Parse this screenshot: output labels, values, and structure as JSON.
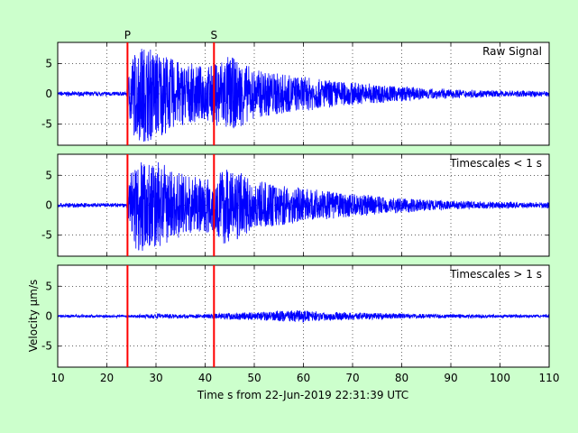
{
  "figure": {
    "background": "#ccffcc",
    "plot_background": "#ffffff",
    "signal_color": "#0000ff",
    "marker_color": "#ff0000"
  },
  "chart_data": {
    "type": "line",
    "xlabel": "Time s from 22-Jun-2019 22:31:39 UTC",
    "ylabel": "Velocity μm/s",
    "xlim": [
      10,
      110
    ],
    "x_ticks": [
      10,
      20,
      30,
      40,
      50,
      60,
      70,
      80,
      90,
      100,
      110
    ],
    "grid": true,
    "phase_markers": [
      {
        "label": "P",
        "x": 24.2
      },
      {
        "label": "S",
        "x": 41.8
      }
    ],
    "panels": [
      {
        "title": "Raw Signal",
        "ylim": [
          -8.5,
          8.5
        ],
        "y_ticks": [
          5,
          0,
          -5
        ],
        "noise_level": 0.25,
        "envelope": [
          [
            10,
            0.3
          ],
          [
            24,
            0.3
          ],
          [
            25,
            6.5
          ],
          [
            27,
            8.0
          ],
          [
            30,
            7.5
          ],
          [
            33,
            6.0
          ],
          [
            36,
            5.0
          ],
          [
            40,
            4.5
          ],
          [
            42,
            5.0
          ],
          [
            44,
            6.5
          ],
          [
            47,
            5.5
          ],
          [
            50,
            4.0
          ],
          [
            55,
            3.5
          ],
          [
            58,
            3.0
          ],
          [
            60,
            2.8
          ],
          [
            65,
            2.3
          ],
          [
            70,
            1.9
          ],
          [
            80,
            1.2
          ],
          [
            90,
            0.7
          ],
          [
            100,
            0.5
          ],
          [
            110,
            0.4
          ]
        ]
      },
      {
        "title": "Timescales < 1 s",
        "ylim": [
          -8.5,
          8.5
        ],
        "y_ticks": [
          5,
          0,
          -5
        ],
        "noise_level": 0.25,
        "envelope": [
          [
            10,
            0.3
          ],
          [
            24,
            0.3
          ],
          [
            25,
            6.5
          ],
          [
            27,
            8.0
          ],
          [
            30,
            7.5
          ],
          [
            33,
            6.0
          ],
          [
            36,
            5.0
          ],
          [
            40,
            4.5
          ],
          [
            42,
            5.0
          ],
          [
            44,
            6.5
          ],
          [
            47,
            5.5
          ],
          [
            50,
            4.0
          ],
          [
            55,
            3.5
          ],
          [
            58,
            3.0
          ],
          [
            60,
            2.8
          ],
          [
            65,
            2.3
          ],
          [
            70,
            1.9
          ],
          [
            80,
            1.2
          ],
          [
            90,
            0.7
          ],
          [
            100,
            0.5
          ],
          [
            110,
            0.4
          ]
        ]
      },
      {
        "title": "Timescales > 1 s",
        "ylim": [
          -8.5,
          8.5
        ],
        "y_ticks": [
          5,
          0,
          -5
        ],
        "noise_level": 0.15,
        "envelope": [
          [
            10,
            0.2
          ],
          [
            24,
            0.2
          ],
          [
            30,
            0.4
          ],
          [
            40,
            0.3
          ],
          [
            46,
            0.6
          ],
          [
            50,
            0.6
          ],
          [
            56,
            0.9
          ],
          [
            60,
            1.0
          ],
          [
            62,
            0.8
          ],
          [
            70,
            0.6
          ],
          [
            80,
            0.4
          ],
          [
            90,
            0.3
          ],
          [
            100,
            0.25
          ],
          [
            110,
            0.2
          ]
        ]
      }
    ]
  }
}
